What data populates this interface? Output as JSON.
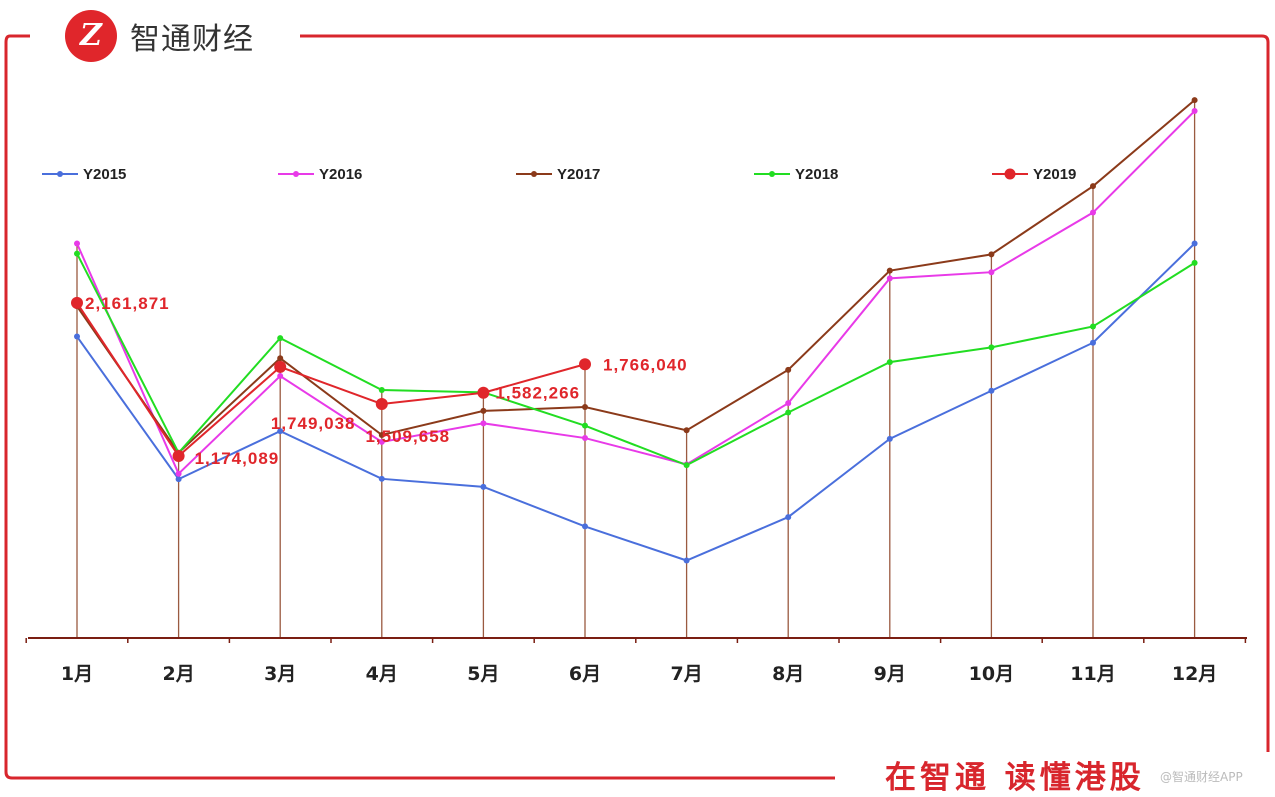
{
  "header": {
    "brand": "智通财经",
    "logo_icon": "zhitong-logo-icon"
  },
  "footer": {
    "slogan": "在智通  读懂港股",
    "watermark": "@智通财经APP"
  },
  "colors": {
    "frame": "#d8262d",
    "axis": "#7a1e12"
  },
  "chart_data": {
    "type": "line",
    "categories": [
      "1月",
      "2月",
      "3月",
      "4月",
      "5月",
      "6月",
      "7月",
      "8月",
      "9月",
      "10月",
      "11月",
      "12月"
    ],
    "ylim": [
      0,
      3600000
    ],
    "grid": false,
    "legend_position": "top",
    "series": [
      {
        "name": "Y2015",
        "color": "#4a6fdc",
        "marker": "small",
        "values": [
          1945000,
          1025000,
          1335000,
          1027000,
          975000,
          720000,
          500000,
          780000,
          1285000,
          1595000,
          1905000,
          2545000
        ]
      },
      {
        "name": "Y2016",
        "color": "#e83ae8",
        "marker": "small",
        "values": [
          2545000,
          1060000,
          1690000,
          1265000,
          1385000,
          1290000,
          1120000,
          1515000,
          2320000,
          2360000,
          2745000,
          3400000
        ]
      },
      {
        "name": "Y2017",
        "color": "#8b3a1a",
        "marker": "small",
        "values": [
          2140000,
          1195000,
          1805000,
          1310000,
          1465000,
          1490000,
          1340000,
          1730000,
          2370000,
          2475000,
          2915000,
          3470000
        ]
      },
      {
        "name": "Y2018",
        "color": "#22dd22",
        "marker": "small",
        "values": [
          2480000,
          1195000,
          1935000,
          1600000,
          1585000,
          1370000,
          1115000,
          1455000,
          1780000,
          1875000,
          2010000,
          2420000
        ]
      },
      {
        "name": "Y2019",
        "color": "#e0262b",
        "marker": "large",
        "values": [
          2161871,
          1174089,
          1749038,
          1509658,
          1582266,
          1766040,
          null,
          null,
          null,
          null,
          null,
          null
        ]
      }
    ],
    "data_labels": [
      {
        "series": "Y2019",
        "index": 0,
        "text": "2,161,871"
      },
      {
        "series": "Y2019",
        "index": 1,
        "text": "1,174,089"
      },
      {
        "series": "Y2019",
        "index": 2,
        "text": "1,749,038"
      },
      {
        "series": "Y2019",
        "index": 3,
        "text": "1,509,658"
      },
      {
        "series": "Y2019",
        "index": 4,
        "text": "1,582,266"
      },
      {
        "series": "Y2019",
        "index": 5,
        "text": "1,766,040"
      }
    ]
  }
}
